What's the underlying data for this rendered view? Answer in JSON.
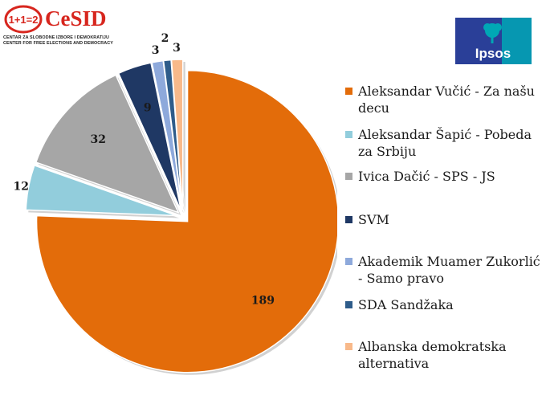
{
  "header": {
    "cesid_logo_text": "CeSID",
    "cesid_logo_mark": "1+1=2",
    "cesid_subtitle_line1": "CENTAR ZA SLOBODNE IZBORE I DEMOKRATIJU",
    "cesid_subtitle_line2": "CENTER FOR FREE ELECTIONS AND DEMOCRACY",
    "ipsos_logo_text": "Ipsos"
  },
  "colors": {
    "orange": "#E36C0A",
    "light_blue": "#92CDDC",
    "gray": "#A6A6A6",
    "navy": "#1F3864",
    "periwinkle": "#8EA9DB",
    "steel_blue": "#2E5C8A",
    "peach": "#F8B98A",
    "ipsos_teal": "#00A7B5",
    "ipsos_blue": "#2A3F98",
    "cesid_red": "#D7261E"
  },
  "chart_data": {
    "type": "pie",
    "title": "",
    "categories": [
      "Aleksandar Vučić - Za našu decu",
      "Aleksandar Šapić - Pobeda za Srbiju",
      "Ivica Dačić - SPS - JS",
      "SVM",
      "Akademik Muamer Zukorlić - Samo pravo",
      "SDA Sandžaka",
      "Albanska demokratska alternativa"
    ],
    "values": [
      189,
      12,
      32,
      9,
      3,
      2,
      3
    ],
    "value_labels": [
      "189",
      "12",
      "32",
      "9",
      "3",
      "2",
      "3"
    ],
    "colors": [
      "#E36C0A",
      "#92CDDC",
      "#A6A6A6",
      "#1F3864",
      "#8EA9DB",
      "#2E5C8A",
      "#F8B98A"
    ],
    "legend_position": "right",
    "exploded": true
  }
}
